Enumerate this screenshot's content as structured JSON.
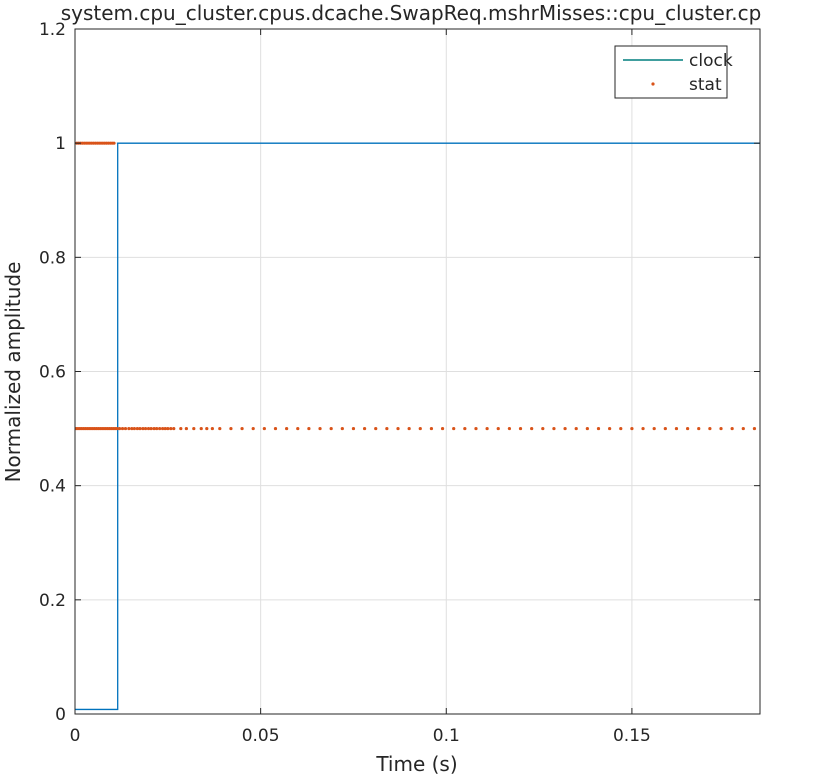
{
  "chart_data": {
    "type": "line",
    "title": "system.cpu_cluster.cpus.dcache.SwapReq.mshrMisses::cpu_cluster.cp",
    "xlabel": "Time (s)",
    "ylabel": "Normalized amplitude",
    "xlim": [
      0,
      0.1845
    ],
    "ylim": [
      0,
      1.2
    ],
    "xticks": [
      0,
      0.05,
      0.1,
      0.15
    ],
    "xtick_labels": [
      "0",
      "0.05",
      "0.1",
      "0.15"
    ],
    "yticks": [
      0,
      0.2,
      0.4,
      0.6,
      0.8,
      1.0,
      1.2
    ],
    "ytick_labels": [
      "0",
      "0.2",
      "0.4",
      "0.6",
      "0.8",
      "1",
      "1.2"
    ],
    "grid": true,
    "legend_position": "top-right",
    "series": [
      {
        "name": "clock",
        "style": "line",
        "color": "#0072BD",
        "legend_color": "#007F7F",
        "x": [
          0,
          0.0115,
          0.0115,
          0.1845
        ],
        "y": [
          0.008,
          0.008,
          1.0,
          1.0
        ]
      },
      {
        "name": "stat",
        "style": "dots",
        "color": "#D95319",
        "x": [
          0.0005,
          0.001,
          0.0015,
          0.002,
          0.0025,
          0.003,
          0.0035,
          0.004,
          0.0045,
          0.005,
          0.0055,
          0.006,
          0.0065,
          0.007,
          0.0075,
          0.008,
          0.0085,
          0.009,
          0.0095,
          0.01,
          0.0105,
          0.0003,
          0.0008,
          0.0013,
          0.0018,
          0.0023,
          0.0028,
          0.0033,
          0.0038,
          0.0043,
          0.0048,
          0.0053,
          0.0058,
          0.0063,
          0.0068,
          0.0073,
          0.0078,
          0.0083,
          0.0088,
          0.0093,
          0.0098,
          0.0103,
          0.0108,
          0.0113,
          0.012,
          0.0128,
          0.0136,
          0.0145,
          0.0153,
          0.016,
          0.0168,
          0.0175,
          0.0183,
          0.019,
          0.0198,
          0.0205,
          0.0213,
          0.022,
          0.0228,
          0.0236,
          0.0243,
          0.025,
          0.0258,
          0.0266,
          0.0285,
          0.03,
          0.032,
          0.034,
          0.0355,
          0.037,
          0.039,
          0.042,
          0.045,
          0.048,
          0.051,
          0.054,
          0.057,
          0.06,
          0.063,
          0.066,
          0.069,
          0.072,
          0.075,
          0.078,
          0.081,
          0.084,
          0.087,
          0.09,
          0.093,
          0.096,
          0.099,
          0.102,
          0.105,
          0.108,
          0.111,
          0.114,
          0.117,
          0.12,
          0.123,
          0.126,
          0.129,
          0.132,
          0.135,
          0.138,
          0.141,
          0.144,
          0.147,
          0.15,
          0.153,
          0.156,
          0.159,
          0.162,
          0.165,
          0.168,
          0.171,
          0.174,
          0.177,
          0.18,
          0.183
        ],
        "y": [
          1,
          1,
          1,
          1,
          1,
          1,
          1,
          1,
          1,
          1,
          1,
          1,
          1,
          1,
          1,
          1,
          1,
          1,
          1,
          1,
          1,
          0.5,
          0.5,
          0.5,
          0.5,
          0.5,
          0.5,
          0.5,
          0.5,
          0.5,
          0.5,
          0.5,
          0.5,
          0.5,
          0.5,
          0.5,
          0.5,
          0.5,
          0.5,
          0.5,
          0.5,
          0.5,
          0.5,
          0.5,
          0.5,
          0.5,
          0.5,
          0.5,
          0.5,
          0.5,
          0.5,
          0.5,
          0.5,
          0.5,
          0.5,
          0.5,
          0.5,
          0.5,
          0.5,
          0.5,
          0.5,
          0.5,
          0.5,
          0.5,
          0.5,
          0.5,
          0.5,
          0.5,
          0.5,
          0.5,
          0.5,
          0.5,
          0.5,
          0.5,
          0.5,
          0.5,
          0.5,
          0.5,
          0.5,
          0.5,
          0.5,
          0.5,
          0.5,
          0.5,
          0.5,
          0.5,
          0.5,
          0.5,
          0.5,
          0.5,
          0.5,
          0.5,
          0.5,
          0.5,
          0.5,
          0.5,
          0.5,
          0.5,
          0.5,
          0.5,
          0.5,
          0.5,
          0.5,
          0.5,
          0.5,
          0.5,
          0.5,
          0.5,
          0.5,
          0.5,
          0.5,
          0.5,
          0.5,
          0.5,
          0.5,
          0.5,
          0.5,
          0.5,
          0.5
        ]
      }
    ]
  }
}
